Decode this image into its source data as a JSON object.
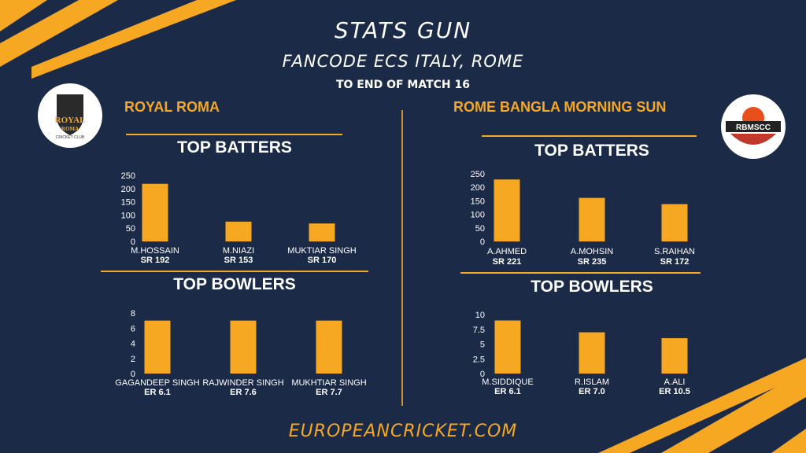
{
  "header": {
    "title": "STATS GUN",
    "subtitle": "FANCODE ECS ITALY, ROME",
    "period": "TO END OF MATCH 16"
  },
  "teams": [
    {
      "name": "ROYAL ROMA",
      "logo_text": [
        "ROYAL",
        "ROMA",
        "CRICKET CLUB"
      ],
      "batters_title": "TOP BATTERS",
      "bowlers_title": "TOP BOWLERS"
    },
    {
      "name": "ROME BANGLA MORNING SUN",
      "logo_text": [
        "RBMSCC"
      ],
      "batters_title": "TOP BATTERS",
      "bowlers_title": "TOP BOWLERS"
    }
  ],
  "footer": "EUROPEANCRICKET.COM",
  "colors": {
    "background": "#1b2a46",
    "accent": "#f6a823",
    "bar": "#f6a823",
    "text": "#ffffff"
  },
  "chart_data": [
    {
      "type": "bar",
      "team": "ROYAL ROMA",
      "title": "TOP BATTERS",
      "categories": [
        "M.HOSSAIN",
        "M.NIAZI",
        "MUKTIAR SINGH"
      ],
      "values": [
        218,
        75,
        68
      ],
      "secondary_labels": [
        "SR 192",
        "SR 153",
        "SR 170"
      ],
      "yticks": [
        "0",
        "50",
        "100",
        "150",
        "200",
        "250"
      ],
      "ylim": [
        0,
        250
      ]
    },
    {
      "type": "bar",
      "team": "ROYAL ROMA",
      "title": "TOP BOWLERS",
      "categories": [
        "GAGANDEEP SINGH",
        "RAJWINDER SINGH",
        "MUKHTIAR SINGH"
      ],
      "values": [
        7,
        7,
        7
      ],
      "secondary_labels": [
        "ER 6.1",
        "ER 7.6",
        "ER 7.7"
      ],
      "yticks": [
        "0",
        "2",
        "4",
        "6",
        "8"
      ],
      "ylim": [
        0,
        8
      ]
    },
    {
      "type": "bar",
      "team": "ROME BANGLA MORNING SUN",
      "title": "TOP BATTERS",
      "categories": [
        "A.AHMED",
        "A.MOHSIN",
        "S.RAIHAN"
      ],
      "values": [
        229,
        161,
        138
      ],
      "secondary_labels": [
        "SR 221",
        "SR 235",
        "SR 172"
      ],
      "yticks": [
        "0",
        "50",
        "100",
        "150",
        "200",
        "250"
      ],
      "ylim": [
        0,
        250
      ]
    },
    {
      "type": "bar",
      "team": "ROME BANGLA MORNING SUN",
      "title": "TOP BOWLERS",
      "categories": [
        "M.SIDDIQUE",
        "R.ISLAM",
        "A.ALI"
      ],
      "values": [
        9,
        7,
        6
      ],
      "secondary_labels": [
        "ER 6.1",
        "ER 7.0",
        "ER 10.5"
      ],
      "yticks": [
        "0",
        "2.5",
        "5",
        "7.5",
        "10"
      ],
      "ylim": [
        0,
        10
      ]
    }
  ]
}
